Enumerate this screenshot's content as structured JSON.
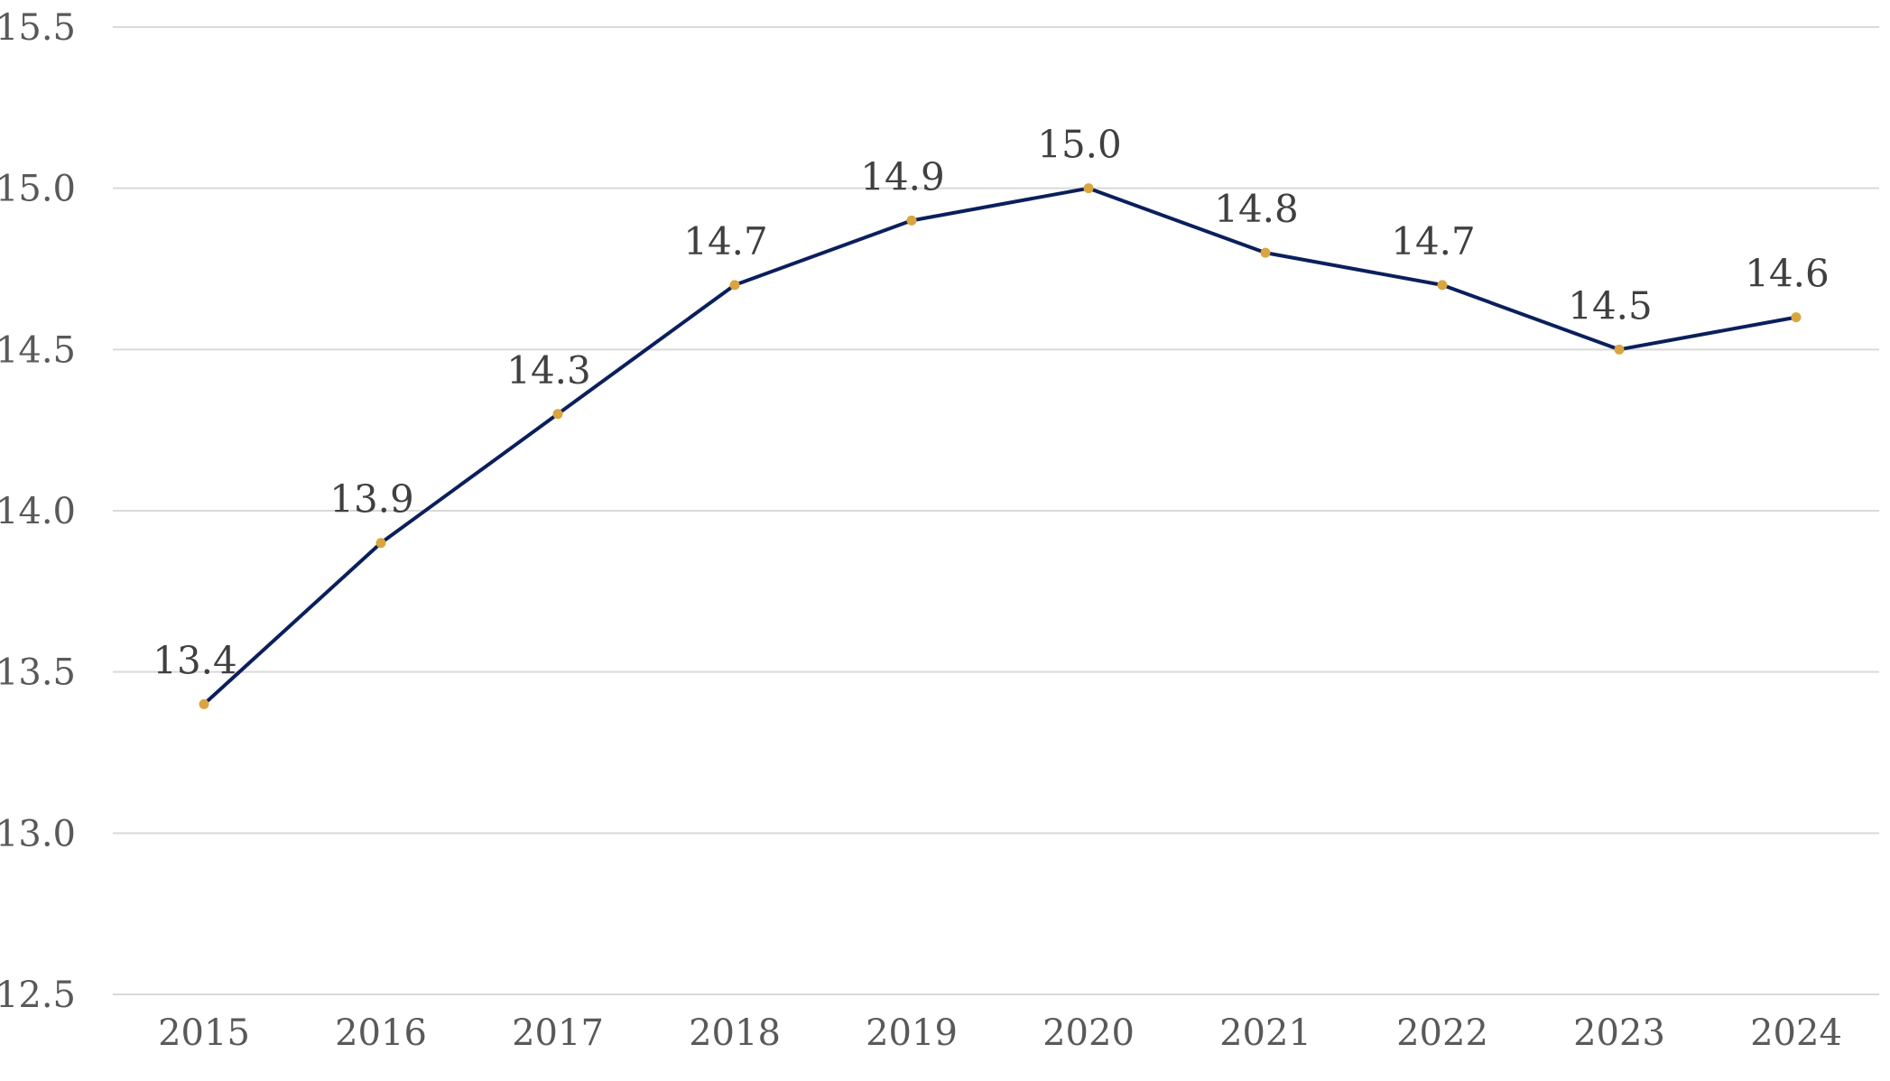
{
  "chart_data": {
    "type": "line",
    "title": "",
    "xlabel": "",
    "ylabel": "",
    "categories": [
      "2015",
      "2016",
      "2017",
      "2018",
      "2019",
      "2020",
      "2021",
      "2022",
      "2023",
      "2024"
    ],
    "series": [
      {
        "values": [
          13.4,
          13.9,
          14.3,
          14.7,
          14.9,
          15.0,
          14.8,
          14.7,
          14.5,
          14.6
        ],
        "labels": [
          "13.4",
          "13.9",
          "14.3",
          "14.7",
          "14.9",
          "15.0",
          "14.8",
          "14.7",
          "14.5",
          "14.6"
        ]
      }
    ],
    "ylim": [
      12.5,
      15.5
    ],
    "yticks": [
      12.5,
      13.0,
      13.5,
      14.0,
      14.5,
      15.0,
      15.5
    ],
    "ytick_labels": [
      "12.5",
      "13.0",
      "13.5",
      "14.0",
      "14.5",
      "15.0",
      "15.5"
    ],
    "grid": true,
    "legend": "none",
    "colors": {
      "line": "#0b1f5c",
      "marker": "#d9a53f",
      "gridline": "#d9d9d9",
      "tick_text": "#595959",
      "label_text": "#404040"
    }
  }
}
